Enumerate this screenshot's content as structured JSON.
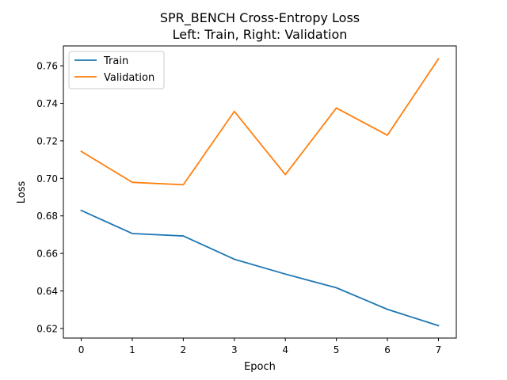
{
  "chart_data": {
    "type": "line",
    "title_line1": "SPR_BENCH Cross-Entropy Loss",
    "title_line2": "Left: Train, Right: Validation",
    "xlabel": "Epoch",
    "ylabel": "Loss",
    "x": [
      0,
      1,
      2,
      3,
      4,
      5,
      6,
      7
    ],
    "xticks": [
      "0",
      "1",
      "2",
      "3",
      "4",
      "5",
      "6",
      "7"
    ],
    "yticks": [
      "0.62",
      "0.64",
      "0.66",
      "0.68",
      "0.70",
      "0.72",
      "0.74",
      "0.76"
    ],
    "xlim": [
      -0.35,
      7.35
    ],
    "ylim": [
      0.6149,
      0.7706
    ],
    "grid": false,
    "legend_position": "top-left",
    "series": [
      {
        "name": "Train",
        "color": "#1f77b4",
        "values": [
          0.6829,
          0.6706,
          0.6693,
          0.6569,
          0.649,
          0.6417,
          0.6302,
          0.6215
        ]
      },
      {
        "name": "Validation",
        "color": "#ff7f0e",
        "values": [
          0.7144,
          0.6979,
          0.6966,
          0.7357,
          0.702,
          0.7375,
          0.723,
          0.7637
        ]
      }
    ]
  }
}
